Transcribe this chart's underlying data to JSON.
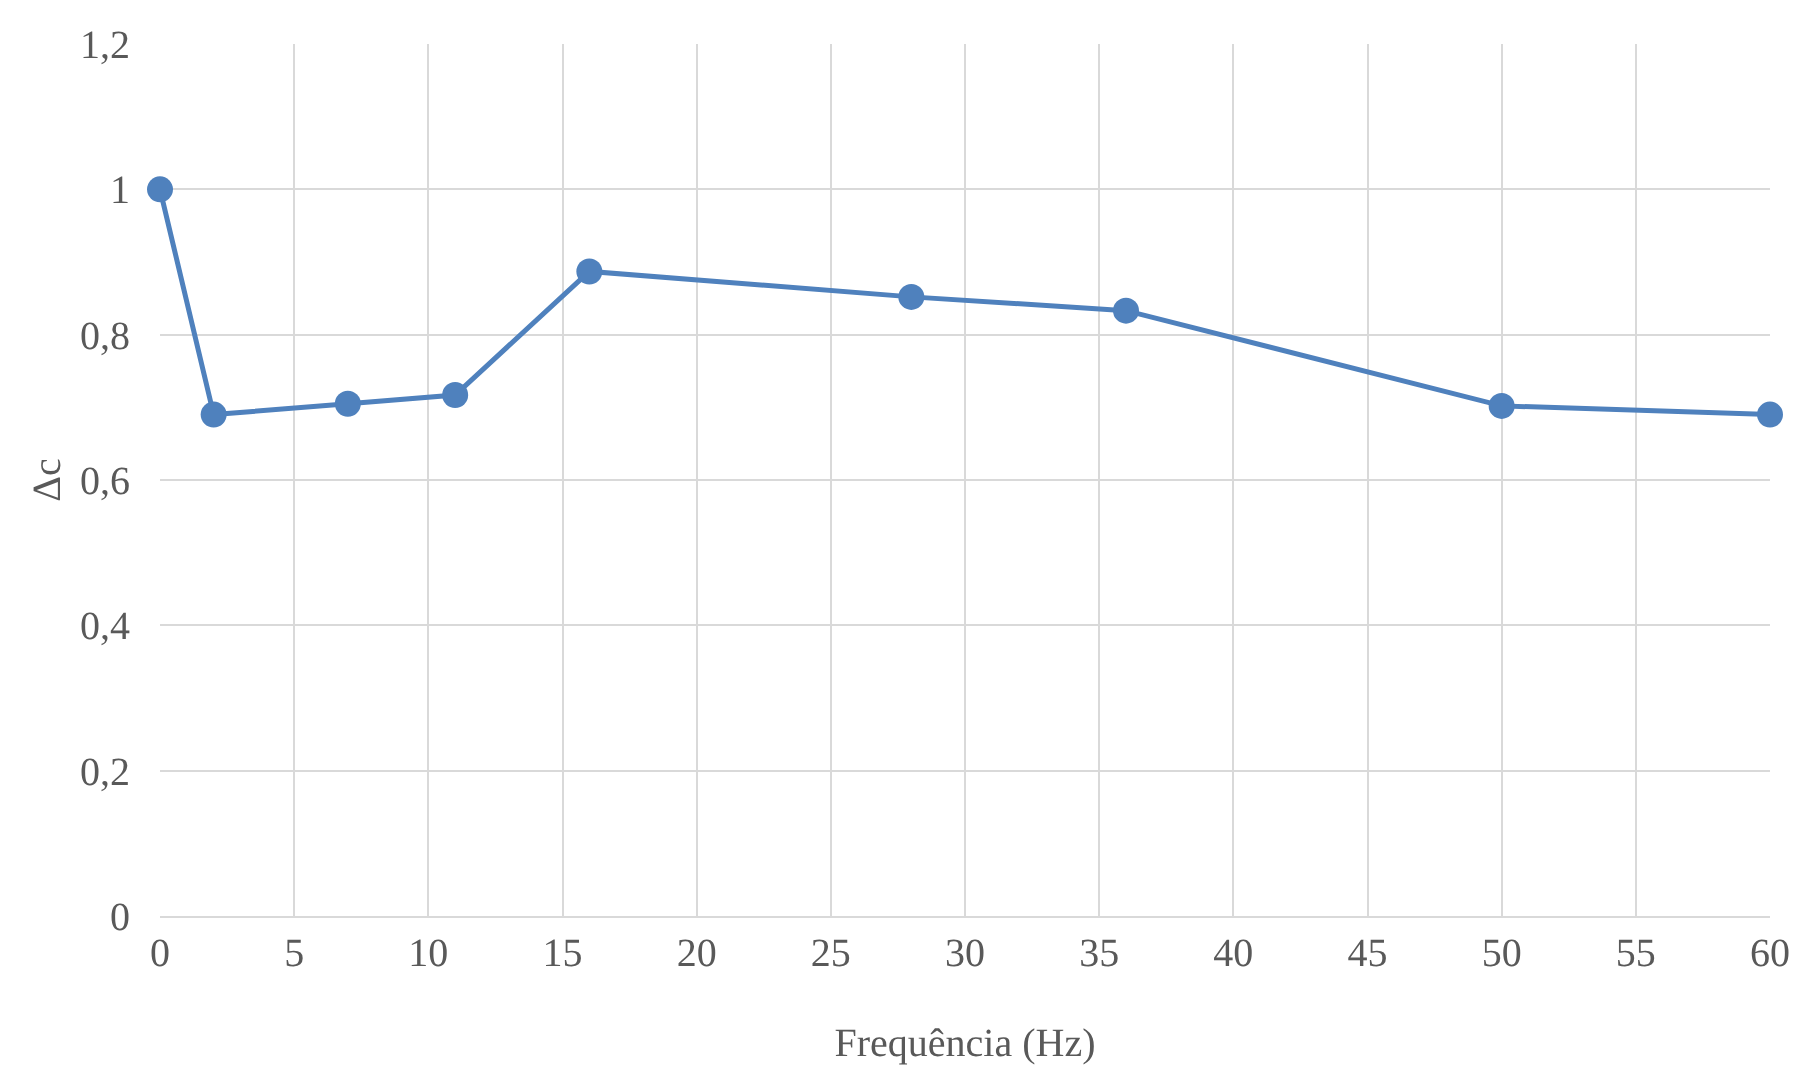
{
  "chart_data": {
    "type": "line",
    "xlabel": "Frequência (Hz)",
    "ylabel": "Δc",
    "x": [
      0,
      2,
      7,
      11,
      16,
      28,
      36,
      50,
      60
    ],
    "series": [
      {
        "color": "#4f81bd",
        "values": [
          1.0,
          0.69,
          0.705,
          0.717,
          0.887,
          0.852,
          0.833,
          0.702,
          0.69
        ]
      }
    ],
    "xlim": [
      0,
      60
    ],
    "xticks": [
      0,
      5,
      10,
      15,
      20,
      25,
      30,
      35,
      40,
      45,
      50,
      55,
      60
    ],
    "ylim": [
      0,
      1.2
    ],
    "yticks": [
      0,
      {
        "value": 0.2,
        "label": "0,2"
      },
      {
        "value": 0.4,
        "label": "0,4"
      },
      {
        "value": 0.6,
        "label": "0,6"
      },
      {
        "value": 0.8,
        "label": "0,8"
      },
      1,
      {
        "value": 1.2,
        "label": "1,2"
      }
    ],
    "grid": true,
    "marker": "circle",
    "line_style": "solid"
  }
}
